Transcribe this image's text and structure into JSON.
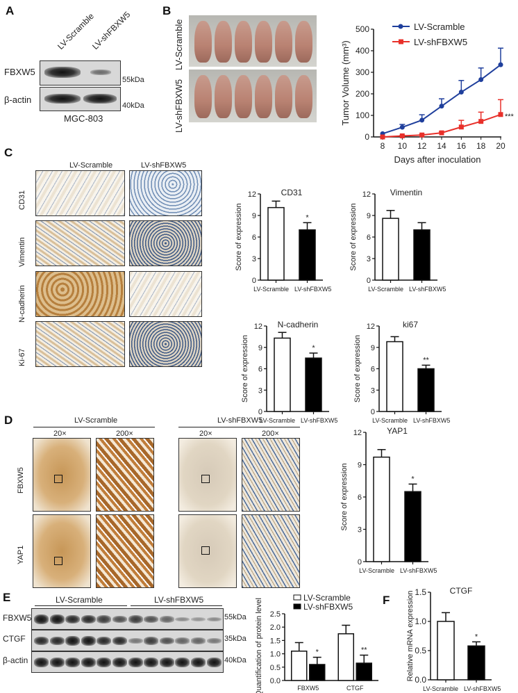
{
  "panels": {
    "A": "A",
    "B": "B",
    "C": "C",
    "D": "D",
    "E": "E",
    "F": "F"
  },
  "panelA": {
    "lanes": [
      "LV-Scramble",
      "LV-shFBXW5"
    ],
    "rows": [
      "FBXW5",
      "β-actin"
    ],
    "markers": [
      "55kDa",
      "40kDa"
    ],
    "cell_line": "MGC-803"
  },
  "panelB": {
    "row_labels": [
      "LV-Scramble",
      "LV-shFBXW5"
    ]
  },
  "panelC": {
    "columns": [
      "LV-Scramble",
      "LV-shFBXW5"
    ],
    "rows": [
      "CD31",
      "Vimentin",
      "N-cadherin",
      "Ki-67"
    ]
  },
  "panelD": {
    "groups": [
      "LV-Scramble",
      "LV-shFBXW5"
    ],
    "mags": [
      "20×",
      "200×",
      "20×",
      "200×"
    ],
    "rows": [
      "FBXW5",
      "YAP1"
    ]
  },
  "panelE": {
    "groups": [
      "LV-Scramble",
      "LV-shFBXW5"
    ],
    "rows": [
      "FBXW5",
      "CTGF",
      "β-actin"
    ],
    "markers": [
      "55kDa",
      "35kDa",
      "40kDa"
    ]
  },
  "colors": {
    "scramble": "#1f3f9c",
    "sh": "#e8302a"
  },
  "chart_data": [
    {
      "id": "tumor",
      "type": "line",
      "xlabel": "Days after inoculation",
      "ylabel": "Tumor Volume (mm³)",
      "x": [
        8,
        10,
        12,
        14,
        16,
        18,
        20
      ],
      "ylim": [
        0,
        500
      ],
      "yticks": [
        0,
        100,
        200,
        300,
        400,
        500
      ],
      "legend": "top-left",
      "series": [
        {
          "name": "LV-Scramble",
          "values": [
            15,
            45,
            78,
            143,
            208,
            266,
            335
          ],
          "err_upper": [
            15,
            58,
            103,
            177,
            262,
            320,
            412
          ]
        },
        {
          "name": "LV-shFBXW5",
          "values": [
            0,
            5,
            9,
            19,
            46,
            72,
            104
          ],
          "err_upper": [
            0,
            7,
            12,
            24,
            77,
            115,
            173
          ]
        }
      ],
      "annotation": "***"
    },
    {
      "id": "cd31",
      "type": "bar",
      "title": "CD31",
      "ylabel": "Score of expression",
      "categories": [
        "LV-Scramble",
        "LV-shFBXW5"
      ],
      "values": [
        10.1,
        7.0
      ],
      "err_upper": [
        11.0,
        8.0
      ],
      "ylim": [
        0,
        12
      ],
      "yticks": [
        0,
        3,
        6,
        9,
        12
      ],
      "sig": [
        "",
        "*"
      ]
    },
    {
      "id": "vimentin",
      "type": "bar",
      "title": "Vimentin",
      "ylabel": "Score of expression",
      "categories": [
        "LV-Scramble",
        "LV-shFBXW5"
      ],
      "values": [
        8.6,
        7.0
      ],
      "err_upper": [
        9.7,
        8.0
      ],
      "ylim": [
        0,
        12
      ],
      "yticks": [
        0,
        3,
        6,
        9,
        12
      ],
      "sig": [
        "",
        ""
      ]
    },
    {
      "id": "ncad",
      "type": "bar",
      "title": "N-cadherin",
      "ylabel": "Score of expression",
      "categories": [
        "LV-Scramble",
        "LV-shFBXW5"
      ],
      "values": [
        10.3,
        7.5
      ],
      "err_upper": [
        11.1,
        8.2
      ],
      "ylim": [
        0,
        12
      ],
      "yticks": [
        0,
        3,
        6,
        9,
        12
      ],
      "sig": [
        "",
        "*"
      ]
    },
    {
      "id": "ki67",
      "type": "bar",
      "title": "ki67",
      "ylabel": "Score of expression",
      "categories": [
        "LV-Scramble",
        "LV-shFBXW5"
      ],
      "values": [
        9.8,
        6.0
      ],
      "err_upper": [
        10.5,
        6.5
      ],
      "ylim": [
        0,
        12
      ],
      "yticks": [
        0,
        3,
        6,
        9,
        12
      ],
      "sig": [
        "",
        "**"
      ]
    },
    {
      "id": "yap1",
      "type": "bar",
      "title": "YAP1",
      "ylabel": "Score of expression",
      "categories": [
        "LV-Scramble",
        "LV-shFBXW5"
      ],
      "values": [
        9.7,
        6.5
      ],
      "err_upper": [
        10.4,
        7.2
      ],
      "ylim": [
        0,
        12
      ],
      "yticks": [
        0,
        3,
        6,
        9,
        12
      ],
      "sig": [
        "",
        "*"
      ]
    },
    {
      "id": "protein",
      "type": "bar",
      "ylabel": "Quantification of protein level",
      "categories": [
        "FBXW5",
        "CTGF"
      ],
      "ylim": [
        0,
        2.5
      ],
      "yticks": [
        "0.0",
        "0.5",
        "1.0",
        "1.5",
        "2.0",
        "2.5"
      ],
      "series": [
        {
          "name": "LV-Scramble",
          "values": [
            1.1,
            1.75
          ],
          "err_upper": [
            1.42,
            2.07
          ]
        },
        {
          "name": "LV-shFBXW5",
          "values": [
            0.6,
            0.65
          ],
          "err_upper": [
            0.87,
            0.95
          ]
        }
      ],
      "sig": [
        "*",
        "**"
      ],
      "legend": "top"
    },
    {
      "id": "ctgf_mrna",
      "type": "bar",
      "title": "CTGF",
      "ylabel": "Relative mRNA expression",
      "categories": [
        "LV-Scramble",
        "LV-shFBXW5"
      ],
      "values": [
        1.0,
        0.58
      ],
      "err_upper": [
        1.15,
        0.65
      ],
      "ylim": [
        0,
        1.5
      ],
      "yticks": [
        "0.0",
        "0.5",
        "1.0",
        "1.5"
      ],
      "sig": [
        "",
        "*"
      ]
    }
  ]
}
